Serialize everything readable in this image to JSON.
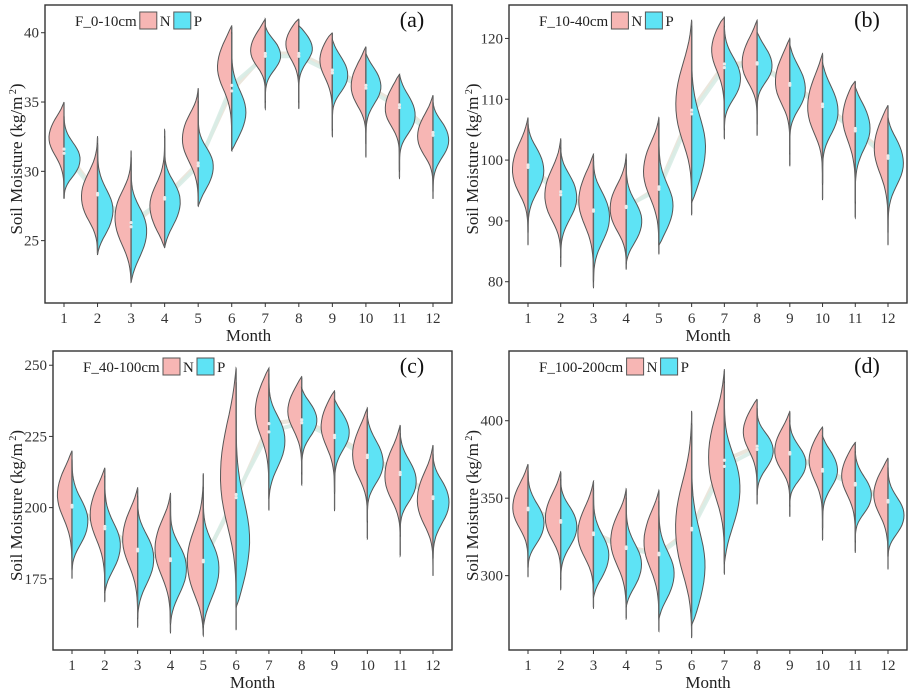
{
  "colors": {
    "N": "#f7b6b4",
    "P": "#5ee3f5",
    "outline": "#555555",
    "trend_N": "#e9e3d8",
    "trend_P": "#d8ece6",
    "frame": "#333333"
  },
  "chart_data": [
    {
      "type": "violin",
      "panel_label": "(a)",
      "legend_title": "F_0-10cm",
      "legend": [
        "N",
        "P"
      ],
      "legend_position": "top-left",
      "xlabel": "Month",
      "ylabel": "Soil Moisture  (kg/m²)",
      "ylabel_main": "Soil Moisture",
      "ylabel_unit": "(kg/m",
      "ylabel_sup": "2",
      "ylabel_close": ")",
      "categories": [
        "1",
        "2",
        "3",
        "4",
        "5",
        "6",
        "7",
        "8",
        "9",
        "10",
        "11",
        "12"
      ],
      "yticks": [
        25,
        30,
        35,
        40
      ],
      "ylim": [
        20.5,
        42
      ],
      "series": [
        {
          "name": "N",
          "min": [
            28,
            24,
            22,
            24.5,
            27.5,
            31.5,
            34.5,
            34.5,
            32.5,
            31,
            29.5,
            28
          ],
          "max": [
            35,
            32.5,
            31.5,
            33,
            36,
            40.5,
            41,
            41,
            40,
            39,
            37,
            35.5
          ],
          "peak": [
            32.3,
            28.7,
            26.0,
            27.6,
            32,
            37.5,
            39.5,
            39.3,
            38.2,
            37.1,
            35.5,
            33.3
          ],
          "median": [
            31.6,
            28.4,
            26.0,
            28.1,
            30.6,
            35.8,
            38.5,
            38.5,
            37.3,
            36.2,
            34.8,
            32.8
          ]
        },
        {
          "name": "P",
          "min": [
            28,
            24,
            22,
            24.5,
            27.5,
            31.5,
            35,
            35,
            33,
            32,
            30,
            28.5
          ],
          "max": [
            34,
            32,
            31,
            32.5,
            35,
            40,
            40.5,
            40.5,
            39.5,
            38.5,
            37,
            35
          ],
          "peak": [
            31.2,
            27.4,
            24.8,
            27.0,
            29.5,
            34.3,
            38.2,
            38.9,
            37.6,
            36.0,
            34.7,
            32.0
          ],
          "median": [
            31.3,
            28.3,
            26.3,
            28.0,
            30.4,
            36.2,
            38.3,
            38.3,
            37.1,
            36.0,
            34.6,
            32.6
          ]
        }
      ]
    },
    {
      "type": "violin",
      "panel_label": "(b)",
      "legend_title": "F_10-40cm",
      "legend": [
        "N",
        "P"
      ],
      "legend_position": "top-left",
      "xlabel": "Month",
      "ylabel": "Soil Moisture  (kg/m²)",
      "ylabel_main": "Soil Moisture",
      "ylabel_unit": "(kg/m",
      "ylabel_sup": "2",
      "ylabel_close": ")",
      "categories": [
        "1",
        "2",
        "3",
        "4",
        "5",
        "6",
        "7",
        "8",
        "9",
        "10",
        "11",
        "12"
      ],
      "yticks": [
        80,
        90,
        100,
        110,
        120
      ],
      "ylim": [
        76.5,
        125.5
      ],
      "series": [
        {
          "name": "N",
          "min": [
            86,
            82.5,
            79,
            82,
            84.5,
            91,
            103.5,
            104,
            99,
            93.5,
            90.5,
            86
          ],
          "max": [
            107,
            103.5,
            101,
            101,
            107,
            123,
            123.5,
            123,
            120,
            117.5,
            113,
            109
          ],
          "peak": [
            100.5,
            96,
            93,
            93.5,
            97.5,
            112,
            118.5,
            118.2,
            115.5,
            111.5,
            107.5,
            102
          ],
          "median": [
            99.2,
            94.8,
            91.8,
            92.2,
            95.6,
            108.2,
            115.8,
            116.0,
            112.6,
            109.2,
            105.2,
            100.7
          ]
        },
        {
          "name": "P",
          "min": [
            88,
            84,
            80,
            83,
            86,
            93,
            105,
            106,
            101,
            96,
            93,
            88
          ],
          "max": [
            106,
            102,
            100,
            100,
            106,
            122,
            122,
            121,
            119,
            116,
            112,
            107
          ],
          "peak": [
            97.5,
            93,
            89.5,
            90.5,
            92.5,
            102,
            114.5,
            117.2,
            113.5,
            110,
            105,
            99
          ],
          "median": [
            98.8,
            94.3,
            91.6,
            92.4,
            95.2,
            107.6,
            115.2,
            115.8,
            112.3,
            108.8,
            104.8,
            100.3
          ]
        }
      ]
    },
    {
      "type": "violin",
      "panel_label": "(c)",
      "legend_title": "F_40-100cm",
      "legend": [
        "N",
        "P"
      ],
      "legend_position": "top-left",
      "xlabel": "Month",
      "ylabel": "Soil Moisture  (kg/m²)",
      "ylabel_main": "Soil Moisture",
      "ylabel_unit": "(kg/m",
      "ylabel_sup": "2",
      "ylabel_close": ")",
      "categories": [
        "1",
        "2",
        "3",
        "4",
        "5",
        "6",
        "7",
        "8",
        "9",
        "10",
        "11",
        "12"
      ],
      "yticks": [
        175,
        200,
        225,
        250
      ],
      "ylim": [
        150,
        255
      ],
      "series": [
        {
          "name": "N",
          "min": [
            175,
            167,
            158,
            156,
            155,
            157,
            199,
            208,
            199,
            189,
            183,
            176
          ],
          "max": [
            220,
            214,
            207,
            205,
            212,
            249,
            249,
            246,
            241,
            235,
            229,
            222
          ],
          "peak": [
            204,
            197,
            188,
            184,
            184,
            220,
            234,
            234,
            229,
            224,
            216,
            207
          ],
          "median": [
            200.8,
            193.4,
            185.4,
            182.0,
            181.5,
            203.5,
            229.5,
            230.8,
            225.4,
            218.4,
            212.4,
            203.8
          ]
        },
        {
          "name": "P",
          "min": [
            178,
            170,
            161,
            159,
            158,
            165,
            203,
            212,
            205,
            195,
            190,
            182
          ],
          "max": [
            217,
            211,
            204,
            202,
            207,
            244,
            247,
            242,
            238,
            232,
            226,
            219
          ],
          "peak": [
            197,
            188,
            179,
            175,
            174,
            188,
            220,
            230,
            226,
            219,
            212,
            200
          ],
          "median": [
            200.2,
            192.6,
            184.8,
            181.4,
            181.0,
            204.6,
            226.6,
            229.8,
            224.6,
            217.6,
            211.6,
            203.2
          ]
        }
      ]
    },
    {
      "type": "violin",
      "panel_label": "(d)",
      "legend_title": "F_100-200cm",
      "legend": [
        "N",
        "P"
      ],
      "legend_position": "top-left",
      "xlabel": "Month",
      "ylabel": "Soil Moisture  (kg/m²)",
      "ylabel_main": "Soil Moisture",
      "ylabel_unit": "(kg/m",
      "ylabel_sup": "2",
      "ylabel_close": ")",
      "categories": [
        "1",
        "2",
        "3",
        "4",
        "5",
        "6",
        "7",
        "8",
        "9",
        "10",
        "11",
        "12"
      ],
      "yticks": [
        300,
        350,
        400
      ],
      "ylim": [
        252,
        445
      ],
      "series": [
        {
          "name": "N",
          "min": [
            299,
            291,
            279,
            272,
            264,
            260,
            301,
            346,
            338,
            323,
            315,
            304
          ],
          "max": [
            372,
            367,
            361,
            356,
            355,
            406,
            433,
            414,
            406,
            396,
            386,
            376
          ],
          "peak": [
            352,
            345,
            335,
            320,
            320,
            340,
            388,
            393,
            388,
            375,
            365,
            352
          ],
          "median": [
            343.5,
            335.5,
            327.5,
            318.5,
            314.5,
            330.5,
            374.5,
            383.5,
            379.5,
            368.5,
            359.5,
            348.5
          ]
        },
        {
          "name": "P",
          "min": [
            305,
            298,
            286,
            280,
            272,
            268,
            308,
            352,
            345,
            330,
            322,
            312
          ],
          "max": [
            368,
            362,
            356,
            350,
            348,
            398,
            425,
            408,
            400,
            390,
            380,
            370
          ],
          "peak": [
            337,
            328,
            315,
            309,
            303,
            305,
            345,
            377,
            376,
            367,
            356,
            342
          ],
          "median": [
            342.5,
            334.5,
            326.5,
            317.5,
            313.5,
            329.5,
            370.5,
            381.5,
            378.5,
            367.5,
            358.5,
            347.5
          ]
        }
      ]
    }
  ]
}
